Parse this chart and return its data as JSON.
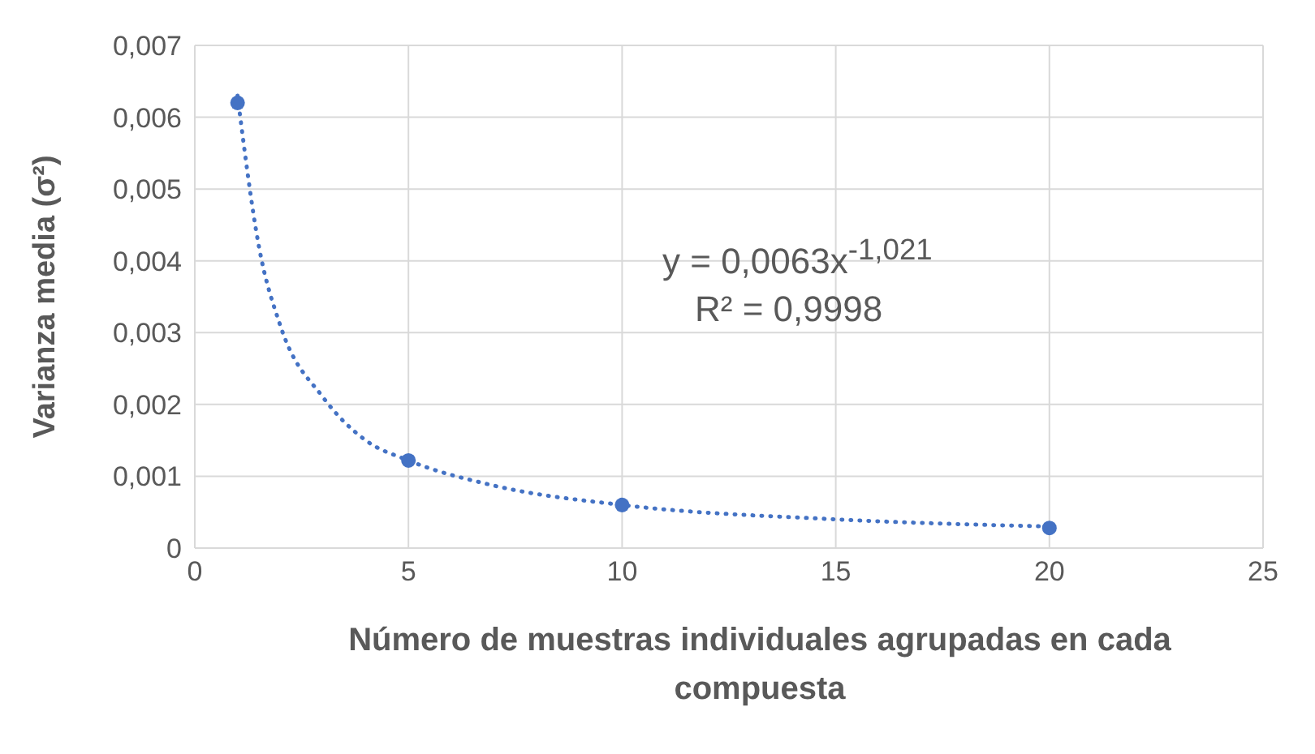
{
  "chart_data": {
    "type": "scatter",
    "xlabel": "Número de muestras individuales agrupadas en cada compuesta",
    "ylabel": "Varianza media (σ²)",
    "xlim": [
      0,
      25
    ],
    "xticks": [
      0,
      5,
      10,
      15,
      20,
      25
    ],
    "ylim": [
      0,
      0.007
    ],
    "yticks": [
      0,
      {
        "value": 0.001,
        "label": "0,001"
      },
      {
        "value": 0.002,
        "label": "0,002"
      },
      {
        "value": 0.003,
        "label": "0,003"
      },
      {
        "value": 0.004,
        "label": "0,004"
      },
      {
        "value": 0.005,
        "label": "0,005"
      },
      {
        "value": 0.006,
        "label": "0,006"
      },
      {
        "value": 0.007,
        "label": "0,007"
      }
    ],
    "grid": true,
    "series": [
      {
        "marker": "circle",
        "color": "#4472c4",
        "x": [
          1,
          5,
          10,
          20
        ],
        "values": [
          0.0062,
          0.00122,
          0.0006,
          0.00028
        ]
      },
      {
        "type": "line",
        "marker": "none",
        "color": "#4472c4",
        "line_style": "dotted",
        "x": [
          1,
          1.5,
          2,
          3,
          4,
          5,
          7,
          10,
          15,
          20
        ],
        "values": [
          0.0063,
          0.0042,
          0.0031,
          0.0021,
          0.0015,
          0.00122,
          0.00087,
          0.0006,
          0.0004,
          0.0003
        ]
      }
    ],
    "annotations": [
      "y = 0,0063x$^{-1,021}$",
      "R² = 0,9998"
    ]
  }
}
